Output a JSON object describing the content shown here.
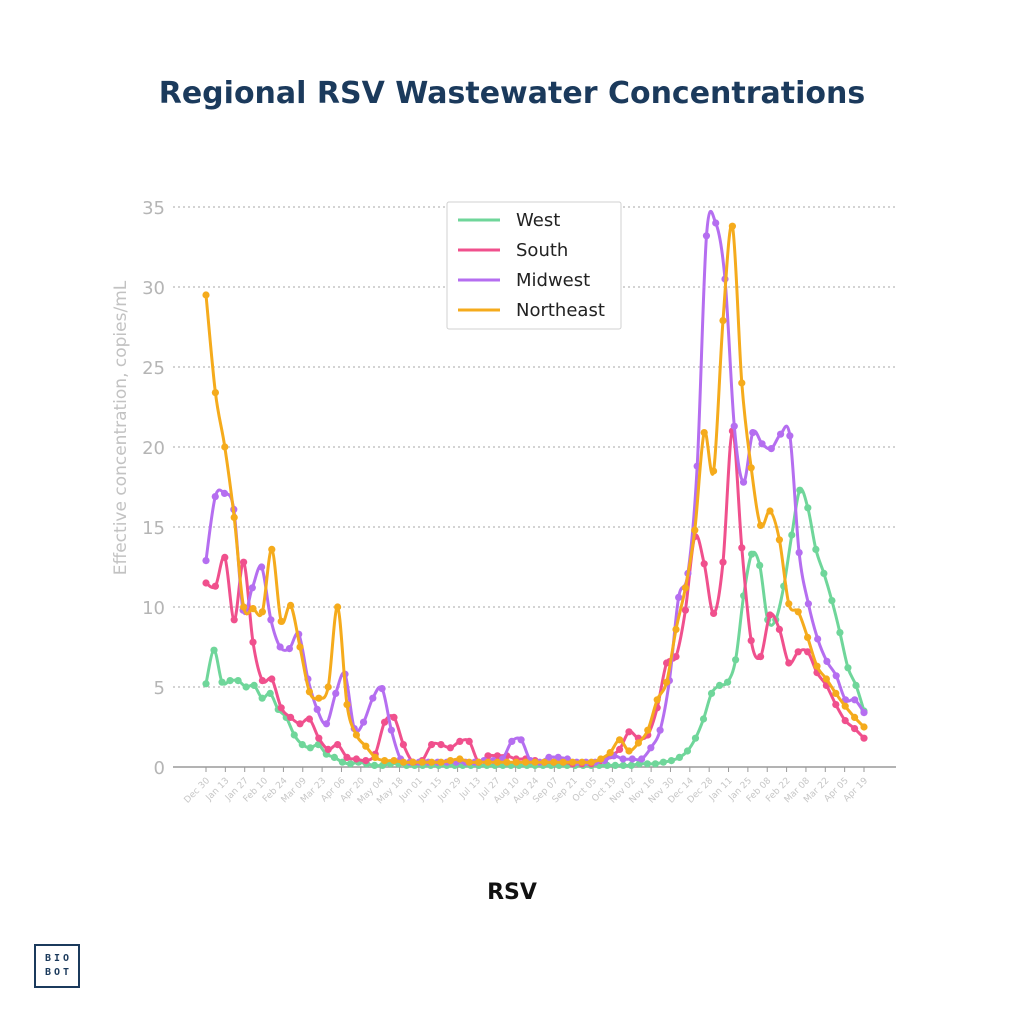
{
  "chart_data": {
    "type": "line",
    "title": "Regional RSV Wastewater Concentrations",
    "xlabel": "RSV",
    "ylabel": "Effective concentration, copies/mL",
    "ylim": [
      0,
      35
    ],
    "yticks": [
      0,
      5,
      10,
      15,
      20,
      25,
      30,
      35
    ],
    "grid": true,
    "legend_position": "top-center",
    "x_tick_labels": [
      "Dec 30",
      "Jan 13",
      "Jan 27",
      "Feb 10",
      "Feb 24",
      "Mar 09",
      "Mar 23",
      "Apr 06",
      "Apr 20",
      "May 04",
      "May 18",
      "Jun 01",
      "Jun 15",
      "Jun 29",
      "Jul 13",
      "Jul 27",
      "Aug 10",
      "Aug 24",
      "Sep 07",
      "Sep 21",
      "Oct 05",
      "Oct 19",
      "Nov 02",
      "Nov 16",
      "Nov 30",
      "Dec 14",
      "Dec 28",
      "Jan 11",
      "Jan 25",
      "Feb 08",
      "Feb 22",
      "Mar 08",
      "Mar 22",
      "Apr 05",
      "Apr 19"
    ],
    "series": [
      {
        "name": "West",
        "color": "#6fd69a",
        "values": [
          5.2,
          7.3,
          5.3,
          5.4,
          5.4,
          5.0,
          5.1,
          4.3,
          4.6,
          3.6,
          3.1,
          2.0,
          1.4,
          1.2,
          1.4,
          0.8,
          0.6,
          0.3,
          0.2,
          0.3,
          0.2,
          0.1,
          0.1,
          0.2,
          0.2,
          0.1,
          0.1,
          0.1,
          0.1,
          0.1,
          0.1,
          0.1,
          0.1,
          0.1,
          0.1,
          0.1,
          0.1,
          0.1,
          0.1,
          0.1,
          0.1,
          0.1,
          0.1,
          0.1,
          0.1,
          0.1,
          0.1,
          0.1,
          0.1,
          0.1,
          0.1,
          0.1,
          0.1,
          0.1,
          0.2,
          0.2,
          0.2,
          0.3,
          0.4,
          0.6,
          1.0,
          1.8,
          3.0,
          4.6,
          5.1,
          5.3,
          6.7,
          10.7,
          13.3,
          12.6,
          9.2,
          9.2,
          11.3,
          14.5,
          17.3,
          16.2,
          13.6,
          12.1,
          10.4,
          8.4,
          6.2,
          5.1,
          3.5
        ]
      },
      {
        "name": "South",
        "color": "#f0508d",
        "values": [
          11.5,
          11.3,
          13.1,
          9.2,
          12.8,
          7.8,
          5.4,
          5.5,
          3.7,
          3.1,
          2.7,
          3.0,
          1.8,
          1.1,
          1.4,
          0.6,
          0.5,
          0.4,
          0.8,
          2.8,
          3.1,
          1.4,
          0.3,
          0.4,
          1.4,
          1.4,
          1.2,
          1.6,
          1.6,
          0.3,
          0.7,
          0.7,
          0.7,
          0.5,
          0.5,
          0.4,
          0.3,
          0.3,
          0.3,
          0.2,
          0.2,
          0.2,
          0.4,
          0.7,
          1.1,
          2.2,
          1.8,
          2.0,
          3.7,
          6.5,
          6.9,
          9.8,
          14.4,
          12.7,
          9.6,
          12.8,
          21.0,
          13.7,
          7.9,
          6.9,
          9.5,
          8.6,
          6.5,
          7.2,
          7.2,
          5.9,
          5.1,
          3.9,
          2.9,
          2.4,
          1.8
        ]
      },
      {
        "name": "Midwest",
        "color": "#b56ef0",
        "values": [
          12.9,
          16.9,
          17.1,
          16.1,
          9.8,
          11.2,
          12.5,
          9.2,
          7.5,
          7.4,
          8.3,
          5.5,
          3.6,
          2.7,
          4.6,
          5.8,
          2.4,
          2.8,
          4.3,
          4.9,
          2.3,
          0.5,
          0.3,
          0.3,
          0.3,
          0.3,
          0.3,
          0.3,
          0.3,
          0.3,
          0.4,
          0.4,
          0.5,
          1.6,
          1.7,
          0.4,
          0.3,
          0.6,
          0.6,
          0.5,
          0.3,
          0.3,
          0.3,
          0.4,
          0.7,
          0.5,
          0.5,
          0.5,
          1.2,
          2.3,
          5.4,
          10.6,
          12.1,
          18.8,
          33.2,
          34.0,
          30.5,
          21.3,
          17.8,
          20.9,
          20.2,
          19.9,
          20.8,
          20.7,
          13.4,
          10.2,
          8.0,
          6.6,
          5.7,
          4.2,
          4.2,
          3.4
        ]
      },
      {
        "name": "Northeast",
        "color": "#f5ab1c",
        "values": [
          29.5,
          23.4,
          20.0,
          15.6,
          10.0,
          9.9,
          9.7,
          13.6,
          9.1,
          10.1,
          7.5,
          4.7,
          4.3,
          5.0,
          10.0,
          3.9,
          2.0,
          1.3,
          0.6,
          0.4,
          0.4,
          0.3,
          0.3,
          0.3,
          0.3,
          0.3,
          0.4,
          0.5,
          0.3,
          0.3,
          0.3,
          0.3,
          0.3,
          0.3,
          0.3,
          0.3,
          0.3,
          0.3,
          0.3,
          0.3,
          0.3,
          0.3,
          0.5,
          0.9,
          1.7,
          1.0,
          1.5,
          2.3,
          4.2,
          5.3,
          8.6,
          11.2,
          14.8,
          20.9,
          18.5,
          27.9,
          33.8,
          24.0,
          18.7,
          15.1,
          16.0,
          14.2,
          10.2,
          9.7,
          8.1,
          6.3,
          5.5,
          4.6,
          3.8,
          3.1,
          2.5
        ]
      }
    ]
  },
  "logo": {
    "line1": "BIO",
    "line2": "BOT"
  }
}
